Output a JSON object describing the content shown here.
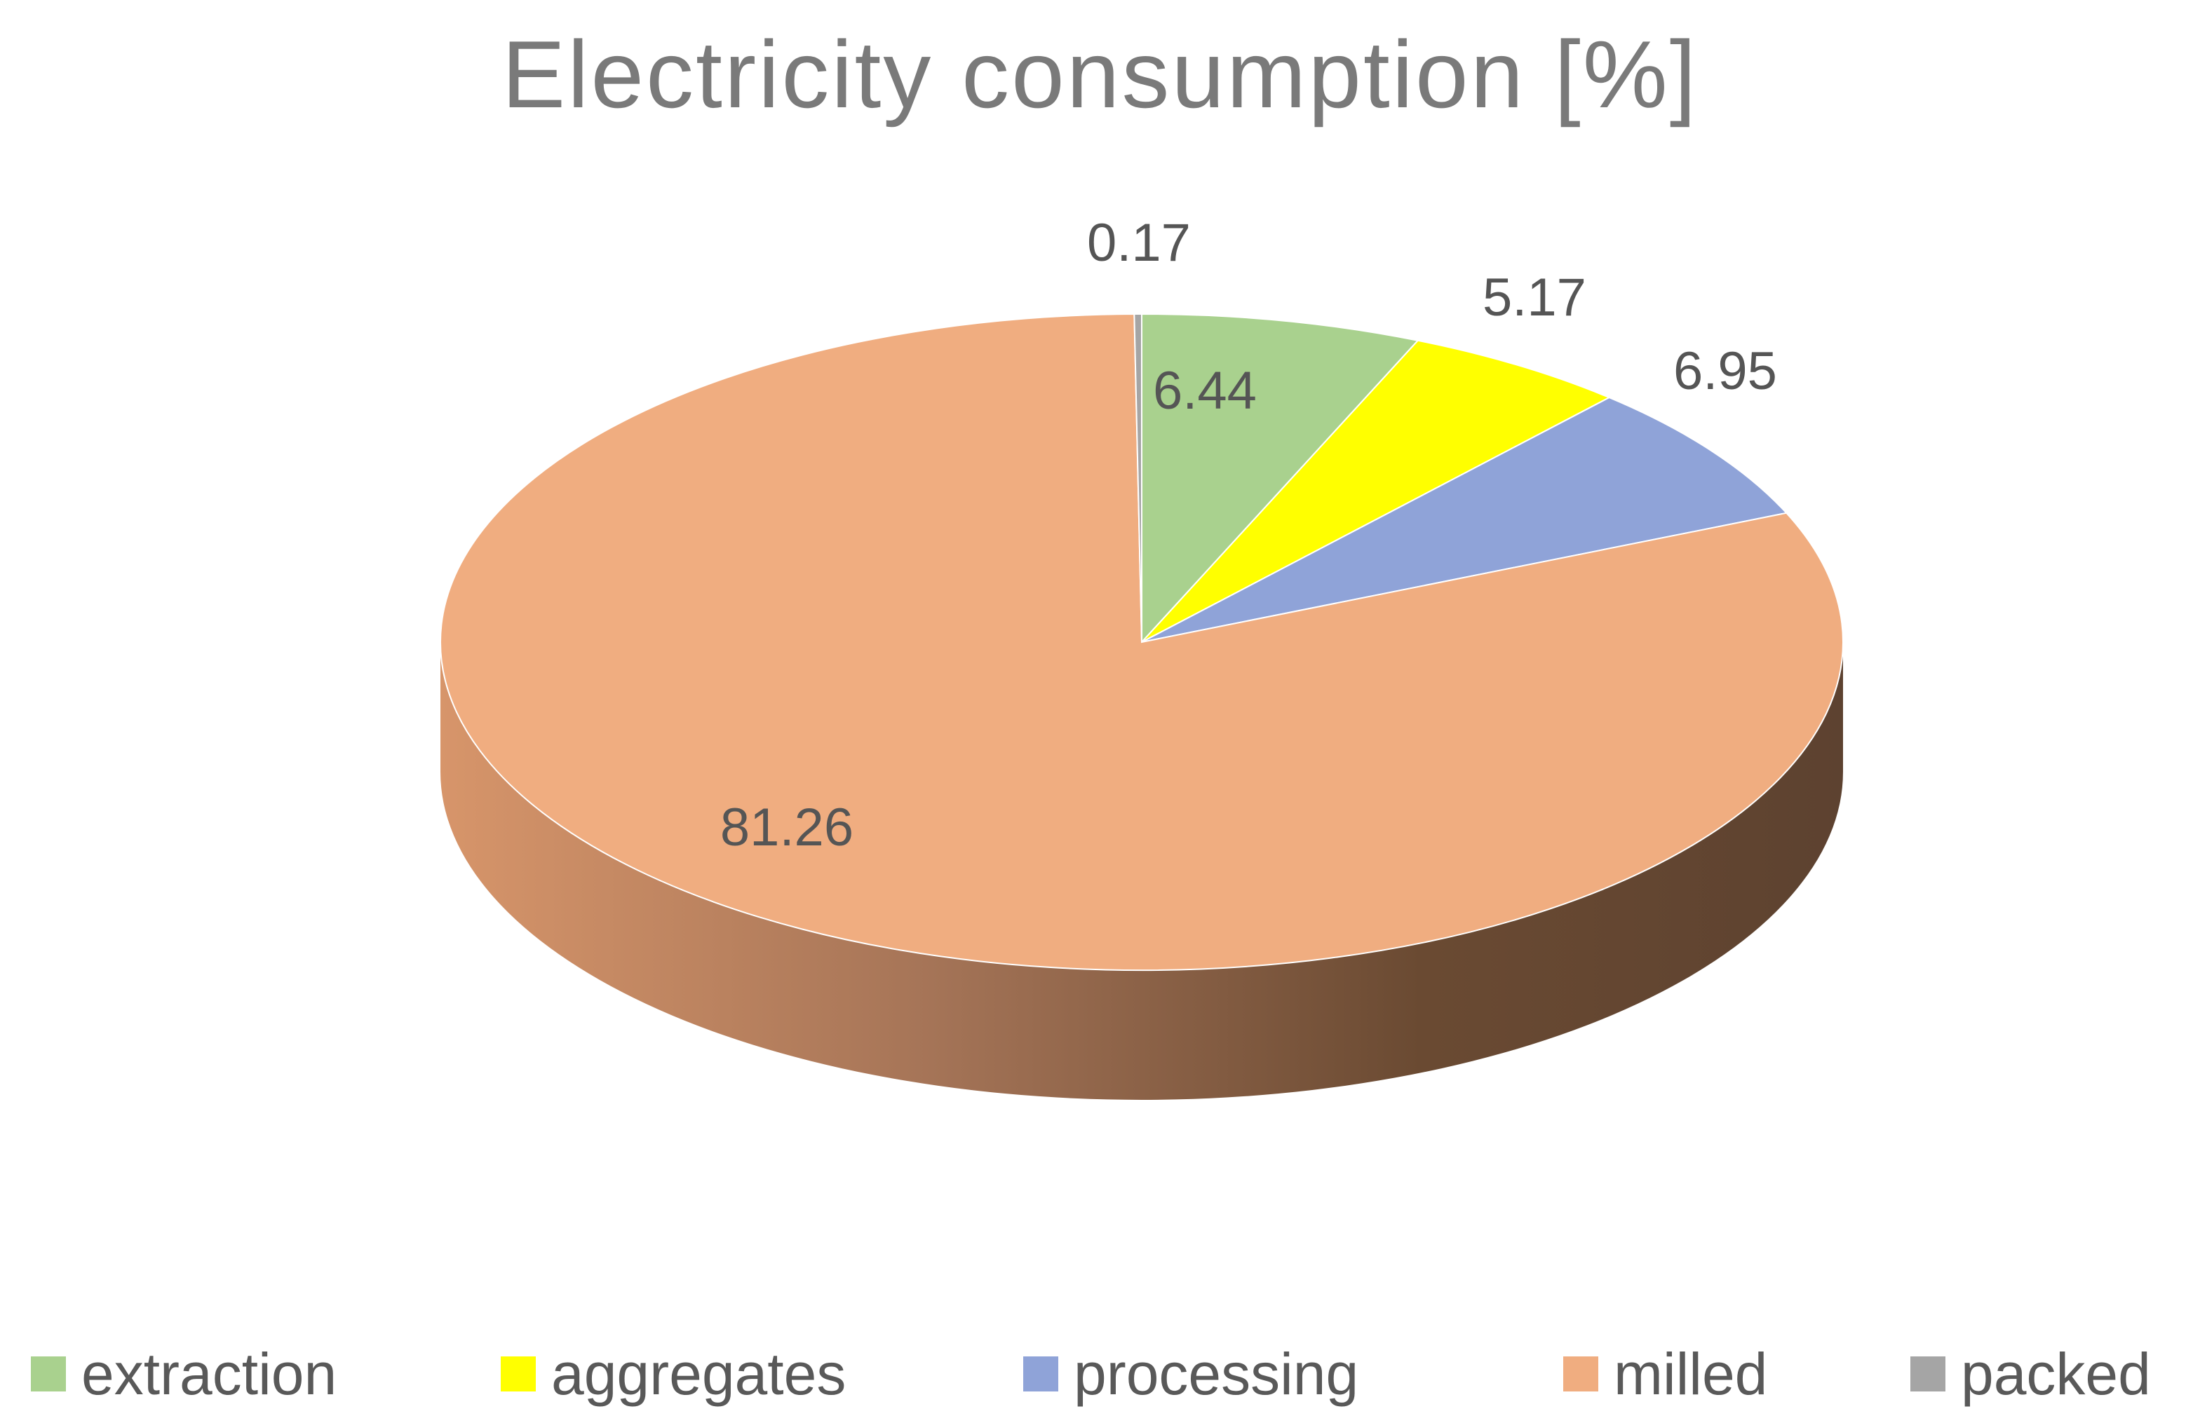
{
  "chart_data": {
    "type": "pie",
    "title": "Electricity consumption [%]",
    "categories": [
      "extraction",
      "aggregates",
      "processing",
      "milled",
      "packed"
    ],
    "values": [
      6.44,
      5.17,
      6.95,
      81.26,
      0.17
    ],
    "data_labels": [
      "6.44",
      "5.17",
      "6.95",
      "81.26",
      "0.17"
    ],
    "colors": [
      "#a9d18e",
      "#ffff00",
      "#8fa3d8",
      "#f0ad80",
      "#a5a5a5"
    ],
    "legend_position": "bottom",
    "style": "3d"
  },
  "legend": {
    "items": [
      {
        "label": "extraction",
        "color": "#a9d18e"
      },
      {
        "label": "aggregates",
        "color": "#ffff00"
      },
      {
        "label": "processing",
        "color": "#8fa3d8"
      },
      {
        "label": "milled",
        "color": "#f0ad80"
      },
      {
        "label": "packed",
        "color": "#a5a5a5"
      }
    ]
  }
}
